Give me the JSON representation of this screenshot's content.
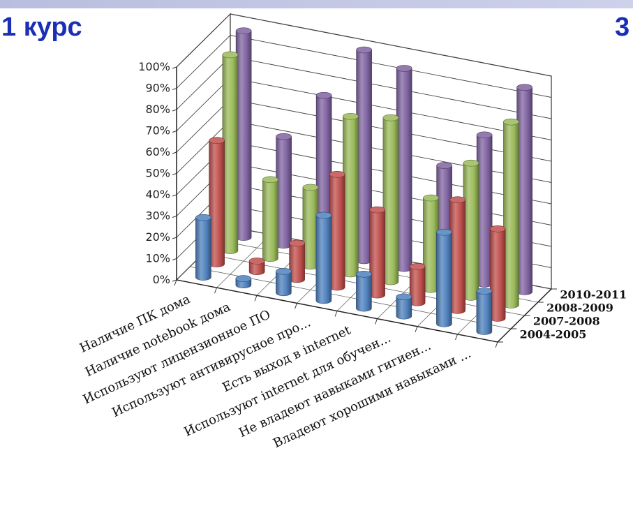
{
  "header": {
    "title": "1 курс",
    "title_right_fragment": "3"
  },
  "chart_data": {
    "type": "bar",
    "subtype": "3d-cylinder-column",
    "title": "",
    "xlabel": "",
    "ylabel": "",
    "ylim": [
      0,
      1
    ],
    "y_format": "percent",
    "yticks": [
      "0%",
      "10%",
      "20%",
      "30%",
      "40%",
      "50%",
      "60%",
      "70%",
      "80%",
      "90%",
      "100%"
    ],
    "categories": [
      "Наличие ПК дома",
      "Наличие notebook дома",
      "Используют лицензионное ПО",
      "Используют антивирусное про...",
      "Есть выход в internet",
      "Используют internet для обучен...",
      "Не владеют навыками гигиен...",
      "Владеют хорошими навыками ..."
    ],
    "series": [
      {
        "name": "2004-2005",
        "color": "#4f81bd",
        "values": [
          0.28,
          0.03,
          0.1,
          0.4,
          0.16,
          0.09,
          0.43,
          0.19
        ]
      },
      {
        "name": "2007-2008",
        "color": "#c0504d",
        "values": [
          0.58,
          0.05,
          0.17,
          0.53,
          0.4,
          0.17,
          0.52,
          0.42
        ]
      },
      {
        "name": "2008-2009",
        "color": "#9bbb59",
        "values": [
          0.92,
          0.37,
          0.37,
          0.74,
          0.77,
          0.43,
          0.63,
          0.86
        ]
      },
      {
        "name": "2010-2011",
        "color": "#8064a2",
        "values": [
          0.97,
          0.51,
          0.74,
          0.99,
          0.94,
          0.52,
          0.7,
          0.96
        ]
      }
    ],
    "grid": true,
    "legend": "depth-axis-right"
  }
}
